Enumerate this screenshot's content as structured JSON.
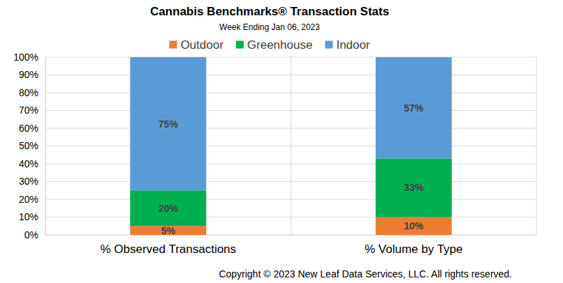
{
  "chart_data": {
    "type": "bar",
    "title": "Cannabis Benchmarks® Transaction Stats",
    "subtitle": "Week Ending Jan 06, 2023",
    "annotations": [
      "Copyright © 2023 New Leaf Data Services, LLC. All rights reserved."
    ],
    "categories": [
      "% Observed Transactions",
      "% Volume by Type"
    ],
    "series": [
      {
        "name": "Outdoor",
        "color": "#ed7d31",
        "values": [
          5,
          10
        ],
        "value_labels": [
          "5%",
          "10%"
        ]
      },
      {
        "name": "Greenhouse",
        "color": "#00b050",
        "values": [
          20,
          33
        ],
        "value_labels": [
          "20%",
          "33%"
        ]
      },
      {
        "name": "Indoor",
        "color": "#5b9bd5",
        "values": [
          75,
          57
        ],
        "value_labels": [
          "75%",
          "57%"
        ]
      }
    ],
    "ylim": [
      0,
      100
    ],
    "yticks": [
      {
        "value": 0,
        "label": "0%"
      },
      {
        "value": 10,
        "label": "10%"
      },
      {
        "value": 20,
        "label": "20%"
      },
      {
        "value": 30,
        "label": "30%"
      },
      {
        "value": 40,
        "label": "40%"
      },
      {
        "value": 50,
        "label": "50%"
      },
      {
        "value": 60,
        "label": "60%"
      },
      {
        "value": 70,
        "label": "70%"
      },
      {
        "value": 80,
        "label": "80%"
      },
      {
        "value": 90,
        "label": "90%"
      },
      {
        "value": 100,
        "label": "100%"
      }
    ],
    "stacked": true,
    "grid": true,
    "legend": "top",
    "data_labels": true
  }
}
